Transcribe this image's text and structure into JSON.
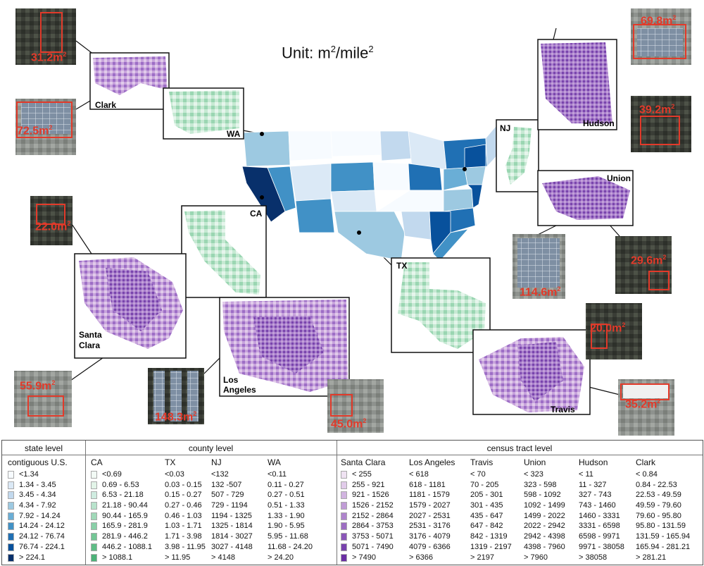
{
  "title": {
    "prefix": "Unit: m",
    "sup1": "2",
    "mid": "/mile",
    "sup2": "2"
  },
  "colors": {
    "state": [
      "#f7fbff",
      "#dbe9f6",
      "#c2d9ee",
      "#9dc9e1",
      "#6aaed6",
      "#4191c6",
      "#2070b4",
      "#08519c",
      "#08306b"
    ],
    "county": [
      "#f2faf5",
      "#e2f4e8",
      "#cfece0",
      "#b8e3cc",
      "#a0d9b8",
      "#89cfa7",
      "#73c695",
      "#5fbd86",
      "#4cb278"
    ],
    "tract": [
      "#efe2f2",
      "#e1cbea",
      "#d1b4e0",
      "#c09cd6",
      "#ae84cc",
      "#9c6dc2",
      "#8a56b8",
      "#7841ad",
      "#6a2ea3"
    ]
  },
  "regions": {
    "clark": "Clark",
    "wa": "WA",
    "nj": "NJ",
    "hudson": "Hudson",
    "union": "Union",
    "ca": "CA",
    "santa_clara_1": "Santa",
    "santa_clara_2": "Clara",
    "los_angeles_1": "Los",
    "los_angeles_2": "Angeles",
    "tx": "TX",
    "travis": "Travis"
  },
  "satellites": [
    {
      "id": "clark-top",
      "value": "31.2m",
      "sup": "2"
    },
    {
      "id": "clark-bottom",
      "value": "72.5m",
      "sup": "2"
    },
    {
      "id": "hudson-top",
      "value": "69.8m",
      "sup": "2"
    },
    {
      "id": "hudson-bottom",
      "value": "39.2m",
      "sup": "2"
    },
    {
      "id": "santa-clara-top",
      "value": "22.0m",
      "sup": "2"
    },
    {
      "id": "santa-clara-bottom",
      "value": "55.9m",
      "sup": "2"
    },
    {
      "id": "union-left",
      "value": "114.6m",
      "sup": "2"
    },
    {
      "id": "union-right",
      "value": "29.6m",
      "sup": "2"
    },
    {
      "id": "los-angeles-left",
      "value": "148.3m",
      "sup": "2"
    },
    {
      "id": "los-angeles-right",
      "value": "45.0m",
      "sup": "2"
    },
    {
      "id": "travis-top",
      "value": "20.0m",
      "sup": "2"
    },
    {
      "id": "travis-bottom",
      "value": "35.2m",
      "sup": "2"
    }
  ],
  "legend": {
    "state_level": "state level",
    "county_level": "county level",
    "tract_level": "census tract level",
    "columns": [
      {
        "name": "contiguous U.S.",
        "palette": "state",
        "ranges": [
          "<1.34",
          "1.34 - 3.45",
          "3.45 - 4.34",
          "4.34 - 7.92",
          "7.92 - 14.24",
          "14.24 - 24.12",
          "24.12 - 76.74",
          "76.74 - 224.1",
          "> 224.1"
        ]
      },
      {
        "name": "CA",
        "palette": "county",
        "ranges": [
          "<0.69",
          "0.69 - 6.53",
          "6.53 - 21.18",
          "21.18 - 90.44",
          "90.44 - 165.9",
          "165.9 - 281.9",
          "281.9 - 446.2",
          "446.2 - 1088.1",
          "> 1088.1"
        ]
      },
      {
        "name": "TX",
        "palette": "none",
        "ranges": [
          "<0.03",
          "0.03 - 0.15",
          "0.15 - 0.27",
          "0.27 - 0.46",
          "0.46 - 1.03",
          "1.03 - 1.71",
          "1.71 - 3.98",
          "3.98 - 11.95",
          "> 11.95"
        ]
      },
      {
        "name": "NJ",
        "palette": "none",
        "ranges": [
          "<132",
          "132 -507",
          "507 - 729",
          "729 - 1194",
          "1194 - 1325",
          "1325 - 1814",
          "1814 - 3027",
          "3027 - 4148",
          "> 4148"
        ]
      },
      {
        "name": "WA",
        "palette": "none",
        "ranges": [
          "<0.11",
          "0.11 - 0.27",
          "0.27 - 0.51",
          "0.51 - 1.33",
          "1.33 - 1.90",
          "1.90 - 5.95",
          "5.95 - 11.68",
          "11.68 - 24.20",
          "> 24.20"
        ]
      },
      {
        "name": "Santa Clara",
        "palette": "tract",
        "ranges": [
          "< 255",
          "255 - 921",
          "921 - 1526",
          "1526 - 2152",
          "2152 - 2864",
          "2864 - 3753",
          "3753 - 5071",
          "5071 - 7490",
          "> 7490"
        ]
      },
      {
        "name": "Los Angeles",
        "palette": "none",
        "ranges": [
          "< 618",
          "618 - 1181",
          "1181 - 1579",
          "1579 - 2027",
          "2027 - 2531",
          "2531 - 3176",
          "3176 - 4079",
          "4079 - 6366",
          "> 6366"
        ]
      },
      {
        "name": "Travis",
        "palette": "none",
        "ranges": [
          "< 70",
          "70 - 205",
          "205 - 301",
          "301 - 435",
          "435 - 647",
          "647 - 842",
          "842 - 1319",
          "1319 - 2197",
          "> 2197"
        ]
      },
      {
        "name": "Union",
        "palette": "none",
        "ranges": [
          "< 323",
          "323 - 598",
          "598 - 1092",
          "1092 - 1499",
          "1499 - 2022",
          "2022 - 2942",
          "2942 - 4398",
          "4398 - 7960",
          "> 7960"
        ]
      },
      {
        "name": "Hudson",
        "palette": "none",
        "ranges": [
          "< 11",
          "11 - 327",
          "327 - 743",
          "743 - 1460",
          "1460 - 3331",
          "3331 - 6598",
          "6598 - 9971",
          "9971 - 38058",
          "> 38058"
        ]
      },
      {
        "name": "Clark",
        "palette": "none",
        "ranges": [
          "< 0.84",
          "0.84 - 22.53",
          "22.53 - 49.59",
          "49.59 - 79.60",
          "79.60 - 95.80",
          "95.80 - 131.59",
          "131.59 - 165.94",
          "165.94 - 281.21",
          "> 281.21"
        ]
      }
    ]
  }
}
